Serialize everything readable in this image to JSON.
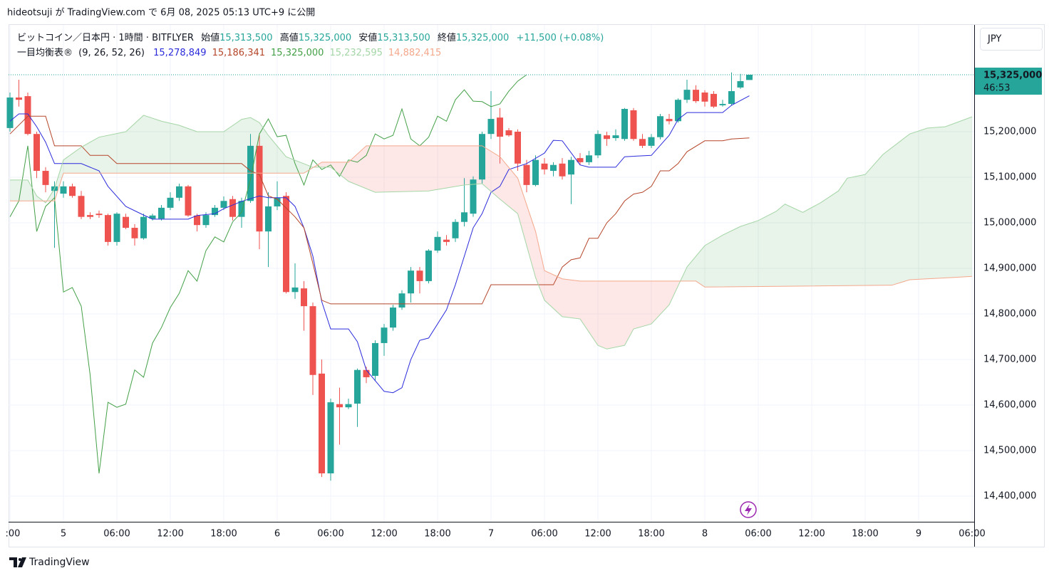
{
  "header": {
    "publish": "hideotsuji が TradingView.com で 6月 08, 2025 05:13 UTC+9 に公開"
  },
  "legend": {
    "symbol": "ビットコイン／日本円 · 1時間 · BITFLYER",
    "open_label": "始値",
    "open": "15,313,500",
    "high_label": "高値",
    "high": "15,325,000",
    "low_label": "安値",
    "low": "15,313,500",
    "close_label": "終値",
    "close": "15,325,000",
    "change": "+11,500 (+0.08%)",
    "indicator": "一目均衡表®",
    "params": "(9, 26, 52, 26)",
    "indicator_values": [
      "15,278,849",
      "15,186,341",
      "15,325,000",
      "15,232,595",
      "14,882,415"
    ]
  },
  "footer": {
    "brand": "TradingView"
  },
  "chart_data": {
    "type": "candlestick",
    "currency": "JPY",
    "up_color": "#26a69a",
    "down_color": "#ef5350",
    "xlim": [
      -6.16,
      102.24
    ],
    "xticks": [
      {
        "value": -6,
        "label": ":00"
      },
      {
        "value": 0,
        "label": "5"
      },
      {
        "value": 6,
        "label": "06:00"
      },
      {
        "value": 12,
        "label": "12:00"
      },
      {
        "value": 18,
        "label": "18:00"
      },
      {
        "value": 24,
        "label": "6"
      },
      {
        "value": 30,
        "label": "06:00"
      },
      {
        "value": 36,
        "label": "12:00"
      },
      {
        "value": 42,
        "label": "18:00"
      },
      {
        "value": 48,
        "label": "7"
      },
      {
        "value": 54,
        "label": "06:00"
      },
      {
        "value": 60,
        "label": "12:00"
      },
      {
        "value": 66,
        "label": "18:00"
      },
      {
        "value": 72,
        "label": "8"
      },
      {
        "value": 78,
        "label": "06:00"
      },
      {
        "value": 84,
        "label": "12:00"
      },
      {
        "value": 90,
        "label": "18:00"
      },
      {
        "value": 96,
        "label": "9"
      },
      {
        "value": 102,
        "label": "06:00"
      }
    ],
    "ylim": [
      14343750,
      15434375
    ],
    "yticks": [
      {
        "value": 14400000,
        "label": "14,400,000"
      },
      {
        "value": 14500000,
        "label": "14,500,000"
      },
      {
        "value": 14600000,
        "label": "14,600,000"
      },
      {
        "value": 14700000,
        "label": "14,700,000"
      },
      {
        "value": 14800000,
        "label": "14,800,000"
      },
      {
        "value": 14900000,
        "label": "14,900,000"
      },
      {
        "value": 15000000,
        "label": "15,000,000"
      },
      {
        "value": 15100000,
        "label": "15,100,000"
      },
      {
        "value": 15200000,
        "label": "15,200,000"
      }
    ],
    "grid": true,
    "price_tag": {
      "value": 15325000,
      "label": "15,325,000",
      "countdown": "46:53"
    },
    "x": [
      -6,
      -5,
      -4,
      -3,
      -2,
      -1,
      0,
      1,
      2,
      3,
      4,
      5,
      6,
      7,
      8,
      9,
      10,
      11,
      12,
      13,
      14,
      15,
      16,
      17,
      18,
      19,
      20,
      21,
      22,
      23,
      24,
      25,
      26,
      27,
      28,
      29,
      30,
      31,
      32,
      33,
      34,
      35,
      36,
      37,
      38,
      39,
      40,
      41,
      42,
      43,
      44,
      45,
      46,
      47,
      48,
      49,
      50,
      51,
      52,
      53,
      54,
      55,
      56,
      57,
      58,
      59,
      60,
      61,
      62,
      63,
      64,
      65,
      66,
      67,
      68,
      69,
      70,
      71,
      72,
      73,
      74,
      75,
      76,
      77
    ],
    "open": [
      15208000,
      15275000,
      15278000,
      15195000,
      15114000,
      15070000,
      15064000,
      15080000,
      15059000,
      15017000,
      15020000,
      15017000,
      14958000,
      15013000,
      14989000,
      14966000,
      15009000,
      15009000,
      15033000,
      15055000,
      15080000,
      15016000,
      14995000,
      15017000,
      15033000,
      15052000,
      15013000,
      15048000,
      15169000,
      14981000,
      15036000,
      15059000,
      14848000,
      14856000,
      14817000,
      14669000,
      14450000,
      14602000,
      14595000,
      14603000,
      14677000,
      14664000,
      14736000,
      14770000,
      14814000,
      14845000,
      14895000,
      14872000,
      14939000,
      14963000,
      14966000,
      15002000,
      15020000,
      15095000,
      15195000,
      15231000,
      15203000,
      15200000,
      15127000,
      15083000,
      15130000,
      15114000,
      15130000,
      15106000,
      15142000,
      15133000,
      15148000,
      15192000,
      15186000,
      15184000,
      15247000,
      15184000,
      15169000,
      15188000,
      15228000,
      15223000,
      15270000,
      15292000,
      15286000,
      15283000,
      15258000,
      15261000,
      15297000,
      15313500
    ],
    "high": [
      15286000,
      15314000,
      15286000,
      15200000,
      15122000,
      15091000,
      15091000,
      15086000,
      15070000,
      15023000,
      15027000,
      15020000,
      15023000,
      15020000,
      14997000,
      15020000,
      15020000,
      15039000,
      15067000,
      15086000,
      15083000,
      15020000,
      15023000,
      15039000,
      15058000,
      15059000,
      15055000,
      15195000,
      15192000,
      15067000,
      15091000,
      15067000,
      14911000,
      14872000,
      14825000,
      14700000,
      14614000,
      14638000,
      14614000,
      14680000,
      14684000,
      14742000,
      14778000,
      14820000,
      14852000,
      14903000,
      14903000,
      14942000,
      14981000,
      14973000,
      15008000,
      15098000,
      15102000,
      15200000,
      15289000,
      15252000,
      15208000,
      15205000,
      15138000,
      15148000,
      15142000,
      15133000,
      15142000,
      15145000,
      15153000,
      15158000,
      15203000,
      15200000,
      15205000,
      15252000,
      15252000,
      15195000,
      15195000,
      15239000,
      15239000,
      15273000,
      15314000,
      15302000,
      15291000,
      15289000,
      15270000,
      15330000,
      15327000,
      15325000
    ],
    "low": [
      15200000,
      15255000,
      15192000,
      15098000,
      15067000,
      14945000,
      15055000,
      15055000,
      15008000,
      15008000,
      15011000,
      14950000,
      14950000,
      14986000,
      14950000,
      14963000,
      15005000,
      15005000,
      15028000,
      15048000,
      15013000,
      14981000,
      14989000,
      15013000,
      15028000,
      15005000,
      14989000,
      15044000,
      14942000,
      14903000,
      15028000,
      14845000,
      14833000,
      14763000,
      14622000,
      14442000,
      14434000,
      14513000,
      14591000,
      14552000,
      14648000,
      14653000,
      14708000,
      14763000,
      14809000,
      14825000,
      14845000,
      14867000,
      14934000,
      14950000,
      14958000,
      14992000,
      15013000,
      15086000,
      15184000,
      15130000,
      15189000,
      15114000,
      15067000,
      15080000,
      15106000,
      15102000,
      15095000,
      15041000,
      15127000,
      15127000,
      15142000,
      15169000,
      15180000,
      15180000,
      15180000,
      15164000,
      15164000,
      15183000,
      15216000,
      15220000,
      15263000,
      15263000,
      15255000,
      15252000,
      15255000,
      15258000,
      15294000,
      15313500
    ],
    "close": [
      15275000,
      15270000,
      15195000,
      15114000,
      15083000,
      15080000,
      15080000,
      15059000,
      15013000,
      15013000,
      15017000,
      14958000,
      15020000,
      14989000,
      14966000,
      15013000,
      15016000,
      15033000,
      15055000,
      15080000,
      15016000,
      14995000,
      15017000,
      15033000,
      15048000,
      15013000,
      15048000,
      15169000,
      14981000,
      15036000,
      15055000,
      14848000,
      14858000,
      14817000,
      14666000,
      14450000,
      14606000,
      14595000,
      14602000,
      14677000,
      14661000,
      14736000,
      14770000,
      14814000,
      14845000,
      14895000,
      14872000,
      14939000,
      14969000,
      14958000,
      15002000,
      15023000,
      15095000,
      15195000,
      15228000,
      15189000,
      15192000,
      15130000,
      15083000,
      15138000,
      15117000,
      15127000,
      15102000,
      15138000,
      15133000,
      15148000,
      15195000,
      15184000,
      15192000,
      15250000,
      15184000,
      15169000,
      15188000,
      15234000,
      15223000,
      15270000,
      15292000,
      15267000,
      15266000,
      15255000,
      15261000,
      15289000,
      15311000,
      15325000
    ],
    "lines": [
      {
        "color": "#2b2bdc",
        "x": [
          -6,
          -5,
          -4,
          -3,
          -2,
          -1,
          2,
          4,
          5,
          7,
          9,
          10,
          14,
          15,
          17,
          18,
          19,
          20,
          22,
          23,
          25,
          26,
          27,
          28,
          29,
          30,
          32,
          33,
          34,
          36,
          37,
          38,
          39,
          40,
          41,
          43,
          44,
          46,
          47,
          48,
          49,
          50,
          52,
          54,
          55,
          56,
          58,
          59,
          62,
          63,
          66,
          68,
          69,
          70,
          74,
          75,
          77
        ],
        "values": [
          15223000,
          15239000,
          15239000,
          15211000,
          15177000,
          15130000,
          15130000,
          15114000,
          15080000,
          15036000,
          15017000,
          15008000,
          15008000,
          15016000,
          15020000,
          15031000,
          15039000,
          15047000,
          15059000,
          15055000,
          15055000,
          15036000,
          14989000,
          14927000,
          14827000,
          14767000,
          14767000,
          14739000,
          14677000,
          14630000,
          14627000,
          14638000,
          14700000,
          14742000,
          14747000,
          14809000,
          14864000,
          14989000,
          15020000,
          15067000,
          15080000,
          15117000,
          15130000,
          15153000,
          15181000,
          15180000,
          15127000,
          15122000,
          15122000,
          15145000,
          15148000,
          15192000,
          15227000,
          15242000,
          15242000,
          15258000,
          15278849
        ]
      },
      {
        "color": "#b5462a",
        "x": [
          -6,
          -4,
          -2,
          -1,
          2,
          3,
          5,
          6,
          20,
          21,
          22,
          23,
          24,
          26,
          27,
          28,
          29,
          30,
          47,
          48,
          55,
          56,
          57,
          58,
          59,
          60,
          61,
          62,
          63,
          64,
          65,
          66,
          67,
          68,
          69,
          70,
          72,
          74,
          75,
          77
        ],
        "values": [
          15195000,
          15234000,
          15234000,
          15169000,
          15169000,
          15148000,
          15148000,
          15130000,
          15130000,
          15114000,
          15106000,
          15059000,
          15052000,
          15013000,
          14989000,
          14911000,
          14830000,
          14822000,
          14822000,
          14864000,
          14864000,
          14903000,
          14919000,
          14923000,
          14966000,
          14966000,
          15000000,
          15020000,
          15048000,
          15063000,
          15067000,
          15080000,
          15114000,
          15114000,
          15130000,
          15156000,
          15180000,
          15180000,
          15184000,
          15186341
        ]
      },
      {
        "color": "#43a047",
        "x": [
          -6,
          -5,
          -4,
          -3,
          -2,
          -1,
          0,
          1,
          2,
          3,
          4,
          5,
          6,
          7,
          8,
          9,
          10,
          11,
          12,
          13,
          14,
          15,
          16,
          17,
          18,
          19,
          20,
          21,
          22,
          23,
          24,
          25,
          26,
          27,
          28,
          29,
          30,
          31,
          32,
          33,
          34,
          35,
          36,
          37,
          38,
          39,
          40,
          41,
          42,
          43,
          44,
          45,
          46,
          47,
          48,
          49,
          50,
          51,
          52
        ],
        "values": [
          15013000,
          15048000,
          15169000,
          14981000,
          15036000,
          15055000,
          14848000,
          14858000,
          14817000,
          14666000,
          14450000,
          14606000,
          14595000,
          14602000,
          14677000,
          14661000,
          14736000,
          14770000,
          14814000,
          14845000,
          14895000,
          14872000,
          14939000,
          14969000,
          14958000,
          15002000,
          15023000,
          15095000,
          15195000,
          15228000,
          15189000,
          15192000,
          15130000,
          15083000,
          15138000,
          15117000,
          15127000,
          15102000,
          15138000,
          15133000,
          15148000,
          15195000,
          15184000,
          15192000,
          15250000,
          15184000,
          15169000,
          15188000,
          15234000,
          15223000,
          15270000,
          15292000,
          15267000,
          15266000,
          15255000,
          15261000,
          15289000,
          15311000,
          15325000
        ]
      },
      {
        "color": "#a5d6a7",
        "x": [
          -6,
          -4,
          -3,
          -2,
          -1,
          0,
          2,
          4,
          7,
          9,
          11,
          13,
          15,
          18,
          20,
          21,
          22,
          23,
          25,
          28,
          30,
          32,
          35,
          41,
          45,
          47,
          49,
          51,
          53,
          54,
          56,
          58,
          60,
          61,
          63,
          64,
          66,
          68,
          70,
          72,
          74,
          76,
          78,
          80,
          81,
          83,
          85,
          87,
          88,
          90,
          92,
          94,
          95,
          97,
          99,
          102
        ],
        "values": [
          15094000,
          15094000,
          15059000,
          15044000,
          15075000,
          15138000,
          15166000,
          15188000,
          15200000,
          15236000,
          15223000,
          15214000,
          15200000,
          15200000,
          15227000,
          15231000,
          15220000,
          15192000,
          15145000,
          15122000,
          15122000,
          15091000,
          15067000,
          15070000,
          15083000,
          15086000,
          15052000,
          15020000,
          14880000,
          14830000,
          14794000,
          14789000,
          14731000,
          14723000,
          14731000,
          14767000,
          14778000,
          14820000,
          14903000,
          14950000,
          14973000,
          14992000,
          15005000,
          15025000,
          15041000,
          15023000,
          15044000,
          15070000,
          15098000,
          15106000,
          15150000,
          15180000,
          15195000,
          15208000,
          15211000,
          15232595
        ]
      },
      {
        "color": "#f4a88c",
        "x": [
          -6,
          -1,
          0,
          27,
          29,
          32,
          34,
          47,
          49,
          51,
          53,
          54,
          56,
          58,
          71,
          72,
          93,
          95,
          100,
          102
        ],
        "values": [
          15048000,
          15048000,
          15109000,
          15109000,
          15133000,
          15133000,
          15169000,
          15169000,
          15145000,
          15098000,
          14981000,
          14895000,
          14877000,
          14872000,
          14872000,
          14859000,
          14863000,
          14875000,
          14880000,
          14882415
        ]
      }
    ],
    "cloud": {
      "lines": [
        3,
        4
      ],
      "up_color": "rgba(67,160,71,0.12)",
      "down_color": "rgba(244,67,54,0.12)"
    }
  }
}
